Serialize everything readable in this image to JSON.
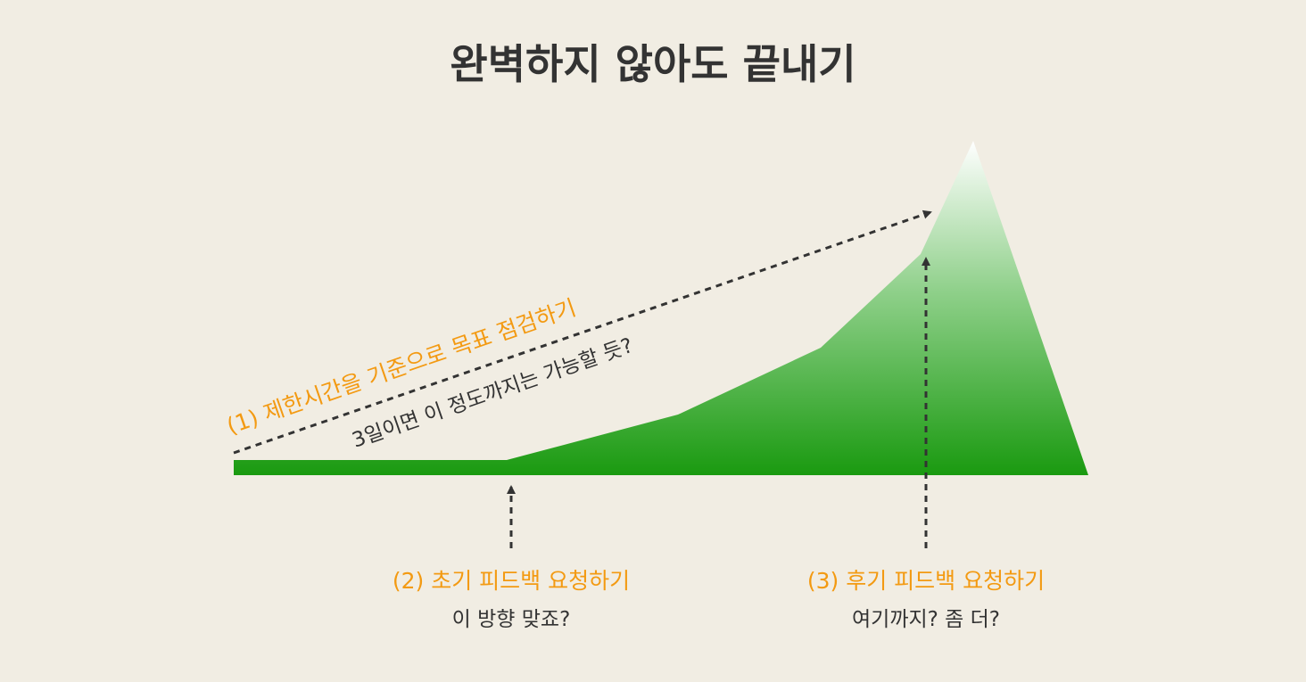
{
  "title": "완벽하지 않아도 끝내기",
  "colors": {
    "accent": "#f39a12",
    "area_bottom": "#1a9a10",
    "area_top": "#ffffff",
    "text": "#333333",
    "background": "#f1ede3"
  },
  "step1": {
    "label": "(1) 제한시간을 기준으로 목표 점검하기",
    "note": "3일이면 이 정도까지는 가능할 듯?"
  },
  "step2": {
    "label": "(2) 초기 피드백 요청하기",
    "note": "이 방향 맞죠?"
  },
  "step3": {
    "label": "(3) 후기 피드백 요청하기",
    "note": "여기까지? 좀 더?"
  }
}
